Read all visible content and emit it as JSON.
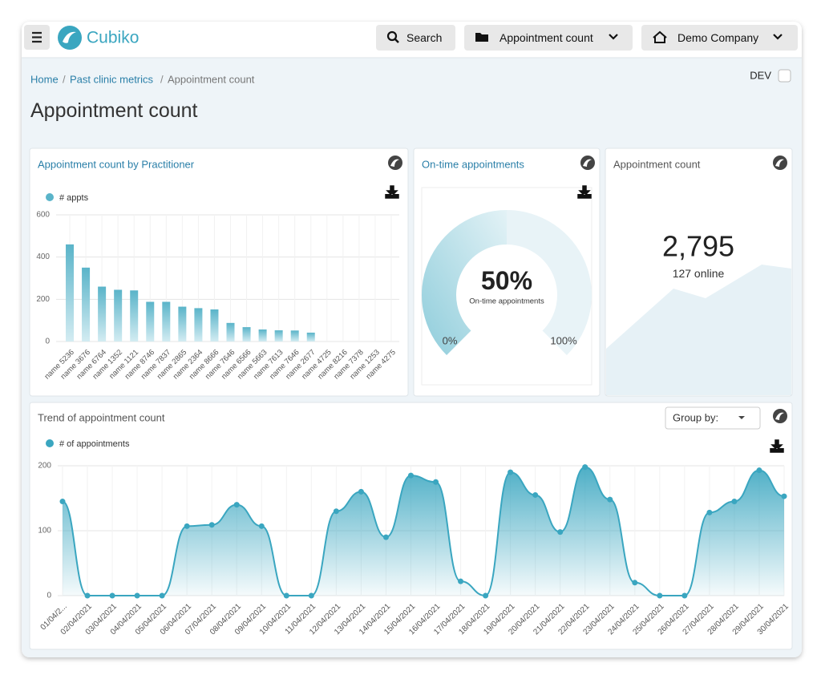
{
  "header": {
    "brand": "Cubiko",
    "search": "Search",
    "report_menu": "Appointment count",
    "company_menu": "Demo Company"
  },
  "breadcrumb": [
    "Home",
    "Past clinic metrics",
    "Appointment count"
  ],
  "dev_label": "DEV",
  "page_title": "Appointment count",
  "group_by_label": "Group by:",
  "chart_data": [
    {
      "type": "bar",
      "title": "Appointment count by Practitioner",
      "categories": [
        "name 5236",
        "name 3676",
        "name 6764",
        "name 1352",
        "name 1121",
        "name 8746",
        "name 7837",
        "name 2865",
        "name 2364",
        "name 8666",
        "name 7646",
        "name 6566",
        "name 5663",
        "name 7613",
        "name 7646",
        "name 2677",
        "name 4725",
        "name 8216",
        "name 7378",
        "name 1253",
        "name 4275"
      ],
      "series": [
        {
          "name": "# appts",
          "color": "#5ab4c9",
          "values": [
            460,
            350,
            260,
            245,
            242,
            188,
            188,
            165,
            158,
            152,
            88,
            68,
            57,
            53,
            52,
            42,
            0,
            0,
            0,
            0,
            0
          ]
        }
      ],
      "ylim": [
        0,
        600
      ],
      "yticks": [
        0,
        200,
        400,
        600
      ],
      "grid": true
    },
    {
      "type": "gauge",
      "title": "On-time appointments",
      "value": 50,
      "value_label": "50%",
      "subtitle": "On-time appointments",
      "min": {
        "value": 0,
        "label": "0%"
      },
      "max": {
        "value": 100,
        "label": "100%"
      },
      "color": "#7cc3d4"
    },
    {
      "type": "kpi",
      "title": "Appointment count",
      "value": 2795,
      "value_label": "2,795",
      "subtitle": "127 online"
    },
    {
      "type": "line",
      "title": "Trend of appointment count",
      "x": [
        "01/04/2...",
        "02/04/2021",
        "03/04/2021",
        "04/04/2021",
        "05/04/2021",
        "06/04/2021",
        "07/04/2021",
        "08/04/2021",
        "09/04/2021",
        "10/04/2021",
        "11/04/2021",
        "12/04/2021",
        "13/04/2021",
        "14/04/2021",
        "15/04/2021",
        "16/04/2021",
        "17/04/2021",
        "18/04/2021",
        "19/04/2021",
        "20/04/2021",
        "21/04/2021",
        "22/04/2021",
        "23/04/2021",
        "24/04/2021",
        "25/04/2021",
        "26/04/2021",
        "27/04/2021",
        "28/04/2021",
        "29/04/2021",
        "30/04/2021"
      ],
      "series": [
        {
          "name": "# of appointments",
          "color": "#3aa6c0",
          "values": [
            145,
            0,
            0,
            0,
            0,
            107,
            109,
            140,
            107,
            0,
            0,
            130,
            160,
            90,
            185,
            175,
            22,
            0,
            190,
            155,
            98,
            198,
            148,
            20,
            0,
            0,
            128,
            145,
            193,
            153
          ]
        }
      ],
      "ylim": [
        0,
        200
      ],
      "yticks": [
        0,
        100,
        200
      ],
      "grid": true
    }
  ]
}
